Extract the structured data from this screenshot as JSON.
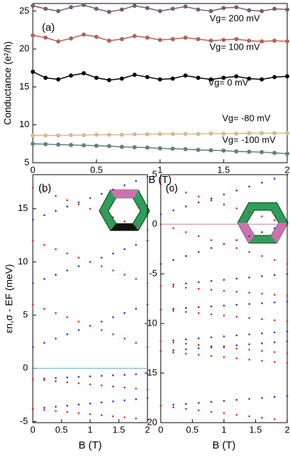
{
  "chart_data": [
    {
      "type": "line",
      "label": "(a)",
      "xlabel": "B (T)",
      "ylabel": "Conductance (e²/h)",
      "xlim": [
        0,
        2
      ],
      "xticks": [
        0,
        0.5,
        1,
        1.5,
        2
      ],
      "ylim": [
        5,
        26
      ],
      "yticks": [
        5,
        10,
        15,
        20,
        25
      ],
      "x": [
        0,
        0.1,
        0.2,
        0.3,
        0.4,
        0.5,
        0.6,
        0.7,
        0.8,
        0.9,
        1,
        1.1,
        1.2,
        1.3,
        1.4,
        1.5,
        1.6,
        1.7,
        1.8,
        1.9,
        2
      ],
      "series": [
        {
          "name": "Vg= 200 mV",
          "color": "#7a5c70",
          "values": [
            25.7,
            25.3,
            25.0,
            25.5,
            25.8,
            25.3,
            24.9,
            25.2,
            25.7,
            25.4,
            25.0,
            25.3,
            25.6,
            25.2,
            25.0,
            25.4,
            25.5,
            25.1,
            25.0,
            25.3,
            25.2
          ]
        },
        {
          "name": "Vg= 100 mV",
          "color": "#b5614f",
          "values": [
            21.8,
            21.5,
            21.0,
            21.4,
            21.9,
            21.6,
            21.1,
            21.3,
            21.7,
            21.5,
            21.2,
            21.3,
            21.5,
            21.3,
            21.1,
            21.2,
            21.3,
            21.1,
            21.0,
            21.1,
            21.0
          ]
        },
        {
          "name": "Vg= 0 mV",
          "color": "#000000",
          "values": [
            17.0,
            16.2,
            16.0,
            16.5,
            16.8,
            16.2,
            15.9,
            16.1,
            16.6,
            16.3,
            16.0,
            16.1,
            16.5,
            16.2,
            16.0,
            16.2,
            16.4,
            16.1,
            16.0,
            16.3,
            16.4
          ]
        },
        {
          "name": "Vg= -80 mV",
          "color": "#d9b98a",
          "values": [
            8.6,
            8.6,
            8.6,
            8.65,
            8.65,
            8.7,
            8.7,
            8.7,
            8.75,
            8.75,
            8.8,
            8.8,
            8.8,
            8.8,
            8.85,
            8.85,
            8.85,
            8.9,
            8.9,
            8.9,
            8.9
          ]
        },
        {
          "name": "Vg= -100 mV",
          "color": "#5e8080",
          "values": [
            7.5,
            7.45,
            7.4,
            7.35,
            7.3,
            7.25,
            7.2,
            7.1,
            7.05,
            7.0,
            6.9,
            6.85,
            6.8,
            6.7,
            6.65,
            6.6,
            6.5,
            6.45,
            6.4,
            6.3,
            6.2
          ]
        }
      ]
    },
    {
      "type": "scatter",
      "label": "(b)",
      "xlabel": "B (T)",
      "ylabel": "εn,σ - EF (meV)",
      "xlim": [
        0,
        2
      ],
      "xticks": [
        0,
        0.5,
        1,
        1.5,
        2
      ],
      "ylim": [
        -5.1,
        18.2
      ],
      "yticks": [
        -5,
        0,
        5,
        10,
        15
      ],
      "hline": 0,
      "hline_color": "#5fa8c8",
      "x": [
        0,
        0.2,
        0.4,
        0.6,
        0.8,
        1,
        1.2,
        1.4,
        1.6,
        1.8,
        2
      ],
      "series": [
        {
          "color": "#2b2be0",
          "values": [
            -1.0,
            -0.95,
            -0.9,
            -0.85,
            -0.8,
            -0.75,
            -0.7,
            -0.65,
            -0.6,
            -0.55,
            -0.5
          ]
        },
        {
          "color": "#e02424",
          "values": [
            -1.0,
            -1.1,
            -1.2,
            -1.3,
            -1.4,
            -1.5,
            -1.6,
            -1.7,
            -1.8,
            -1.9,
            -2.0
          ]
        },
        {
          "color": "#2b2be0",
          "values": [
            -3.8,
            -3.7,
            -3.6,
            -3.5,
            -3.4,
            -3.3,
            -3.2,
            -3.1,
            -3.0,
            -2.9,
            -2.8
          ]
        },
        {
          "color": "#e02424",
          "values": [
            -3.8,
            -3.9,
            -4.0,
            -4.1,
            -4.2,
            -4.3,
            -4.4,
            -4.5,
            -4.6,
            -4.7,
            -4.8
          ]
        },
        {
          "color": "#2b2be0",
          "values": [
            2,
            2.4,
            2.8,
            3.2,
            3.6,
            4,
            4.4,
            4.8,
            5.2,
            5.6,
            6
          ]
        },
        {
          "color": "#e02424",
          "values": [
            6,
            5.6,
            5.2,
            4.8,
            4.4,
            4,
            3.6,
            3.2,
            2.8,
            2.4,
            2
          ]
        },
        {
          "color": "#2b2be0",
          "values": [
            8,
            8.4,
            8.8,
            9.2,
            9.6,
            10,
            10.4,
            10.8,
            11.2,
            11.6,
            12
          ]
        },
        {
          "color": "#e02424",
          "values": [
            12,
            11.6,
            11.2,
            10.8,
            10.4,
            10,
            9.6,
            9.2,
            8.8,
            8.4,
            8
          ]
        },
        {
          "color": "#2b2be0",
          "values": [
            14,
            14.4,
            14.8,
            15.2,
            15.6,
            16,
            16.4,
            16.8,
            17.2,
            17.6,
            18
          ]
        },
        {
          "color": "#e02424",
          "values": [
            17,
            16.6,
            16.2,
            15.8,
            15.4,
            15,
            14.6,
            14.2,
            13.8,
            13.4,
            13
          ]
        }
      ]
    },
    {
      "type": "scatter",
      "label": "(c)",
      "xlabel": "B (T)",
      "xlim": [
        0,
        2
      ],
      "xticks": [
        0,
        0.5,
        1,
        1.5,
        2
      ],
      "ylim": [
        -20,
        5
      ],
      "yticks": [
        -20,
        -15,
        -10,
        -5,
        0,
        5
      ],
      "hline": 0,
      "hline_color": "#c07aa0",
      "x": [
        0,
        0.2,
        0.4,
        0.6,
        0.8,
        1,
        1.2,
        1.4,
        1.6,
        1.8,
        2
      ],
      "series": [
        {
          "color": "#2b2be0",
          "values": [
            -18.3,
            -18.2,
            -18.1,
            -18.0,
            -17.9,
            -17.8,
            -17.7,
            -17.6,
            -17.5,
            -17.4,
            -17.3
          ]
        },
        {
          "color": "#e02424",
          "values": [
            -18.3,
            -18.45,
            -18.6,
            -18.75,
            -18.9,
            -19.05,
            -19.2,
            -19.35,
            -19.5,
            -19.65,
            -19.8
          ]
        },
        {
          "color": "#2b2be0",
          "values": [
            -12.8,
            -12.7,
            -12.6,
            -12.5,
            -12.4,
            -12.3,
            -12.2,
            -12.1,
            -12.0,
            -11.9,
            -11.8
          ]
        },
        {
          "color": "#e02424",
          "values": [
            -12.8,
            -12.92,
            -13.04,
            -13.16,
            -13.28,
            -13.4,
            -13.52,
            -13.64,
            -13.76,
            -13.88,
            -14.0
          ]
        },
        {
          "color": "#2b2be0",
          "values": [
            -11.8,
            -11.7,
            -11.6,
            -11.5,
            -11.4,
            -11.3,
            -11.2,
            -11.1,
            -11.0,
            -10.9,
            -10.8
          ]
        },
        {
          "color": "#e02424",
          "values": [
            -11.8,
            -11.92,
            -12.04,
            -12.16,
            -12.28,
            -12.4,
            -12.52,
            -12.64,
            -12.76,
            -12.88,
            -13.0
          ]
        },
        {
          "color": "#2b2be0",
          "values": [
            -8.6,
            -8.52,
            -8.44,
            -8.36,
            -8.28,
            -8.2,
            -8.12,
            -8.04,
            -7.96,
            -7.88,
            -7.8
          ]
        },
        {
          "color": "#e02424",
          "values": [
            -8.6,
            -8.72,
            -8.84,
            -8.96,
            -9.08,
            -9.2,
            -9.32,
            -9.44,
            -9.56,
            -9.68,
            -9.8
          ]
        },
        {
          "color": "#2b2be0",
          "values": [
            -6.2,
            -6.08,
            -5.96,
            -5.84,
            -5.72,
            -5.6,
            -5.48,
            -5.36,
            -5.24,
            -5.12,
            -5.0
          ]
        },
        {
          "color": "#e02424",
          "values": [
            -6.2,
            -6.3,
            -6.4,
            -6.5,
            -6.6,
            -6.7,
            -6.8,
            -6.9,
            -7.0,
            -7.1,
            -7.2
          ]
        },
        {
          "color": "#2b2be0",
          "values": [
            -4,
            -3.6,
            -3.2,
            -2.8,
            -2.4,
            -2,
            -1.6,
            -1.2,
            -0.8,
            -0.4,
            0
          ]
        },
        {
          "color": "#e02424",
          "values": [
            0,
            -0.4,
            -0.8,
            -1.2,
            -1.6,
            -2,
            -2.4,
            -2.8,
            -3.2,
            -3.6,
            -4
          ]
        },
        {
          "color": "#2b2be0",
          "values": [
            1,
            1.4,
            1.8,
            2.2,
            2.6,
            3,
            3.4,
            3.8,
            4.2,
            4.6,
            5
          ]
        },
        {
          "color": "#e02424",
          "values": [
            4,
            3.6,
            3.2,
            2.8,
            2.4,
            2,
            1.6,
            1.2,
            0.8,
            0.4,
            0
          ]
        }
      ]
    }
  ]
}
